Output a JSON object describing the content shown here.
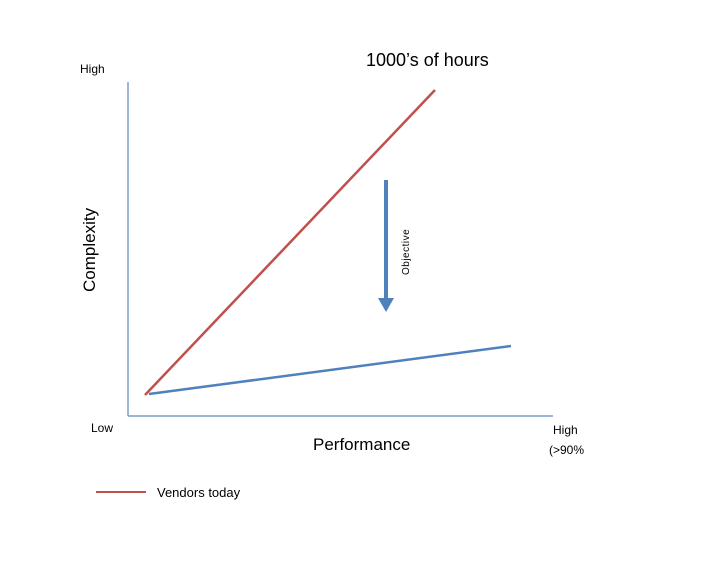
{
  "axes": {
    "y_title": "Complexity",
    "y_high": "High",
    "x_title": "Performance",
    "origin_low": "Low",
    "x_high_line1": "High",
    "x_high_line2": "(>90%"
  },
  "annotations": {
    "top_label": "1000’s of hours",
    "arrow_label": "Objective"
  },
  "legend": {
    "vendors_label": "Vendors today"
  },
  "colors": {
    "axis": "#7f9ccc",
    "vendors_line": "#c0504d",
    "objective_line": "#4f81bd",
    "arrow": "#4f81bd"
  }
}
